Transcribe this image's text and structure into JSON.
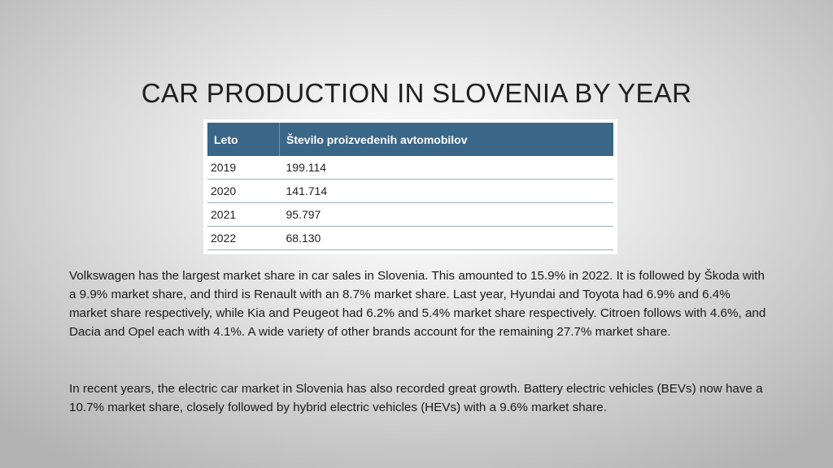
{
  "slide": {
    "title": "CAR PRODUCTION IN SLOVENIA BY YEAR"
  },
  "table": {
    "headers": [
      "Leto",
      "Število proizvedenih avtomobilov"
    ],
    "rows": [
      {
        "year": "2019",
        "value": "199.114"
      },
      {
        "year": "2020",
        "value": "141.714"
      },
      {
        "year": "2021",
        "value": "95.797"
      },
      {
        "year": "2022",
        "value": "68.130"
      }
    ]
  },
  "text": {
    "paragraph_1": "Volkswagen has the largest market share in car sales in Slovenia. This amounted to 15.9% in 2022. It is followed by Škoda with a 9.9% market share, and third is Renault with an 8.7% market share. Last year, Hyundai and Toyota had 6.9% and 6.4% market share respectively, while Kia and Peugeot had 6.2% and 5.4% market share respectively. Citroen follows with 4.6%, and Dacia and Opel each with 4.1%. A wide variety of other brands account for the remaining 27.7% market share.",
    "paragraph_2": "In recent years, the electric car market in Slovenia has also recorded great growth. Battery electric vehicles (BEVs) now have a 10.7% market share, closely followed by hybrid electric vehicles (HEVs) with a 9.6% market share."
  }
}
